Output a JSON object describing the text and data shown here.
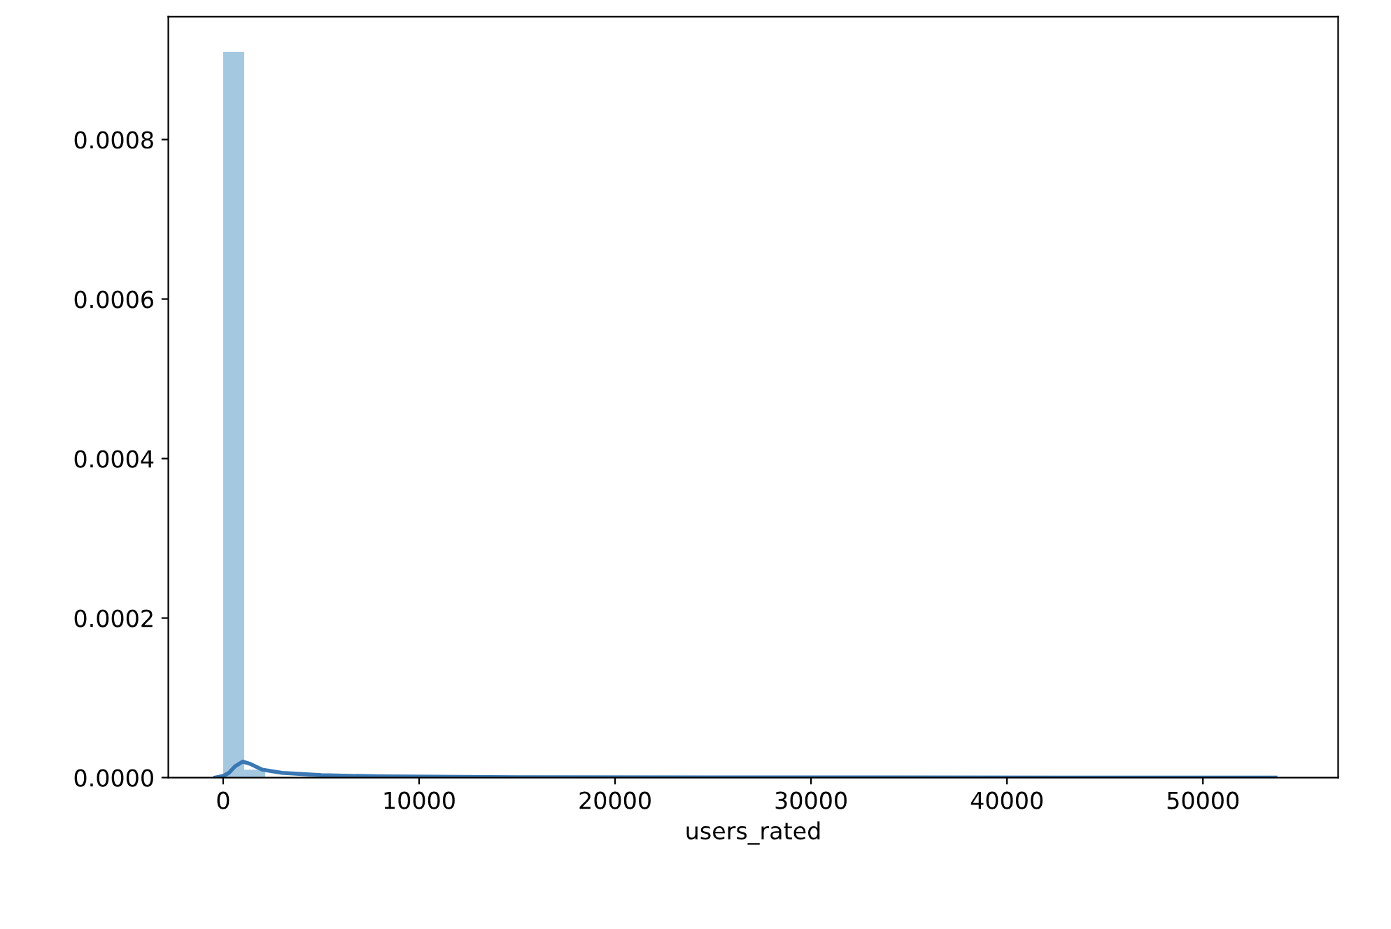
{
  "chart_data": {
    "type": "histogram",
    "xlabel": "users_rated",
    "color": "#a5c8e1",
    "bins": [
      0,
      1074,
      2148,
      3222,
      4296,
      5370,
      6444,
      7518,
      8592,
      9666,
      10740,
      11814,
      12888,
      13962,
      15036,
      16110,
      17184,
      18258,
      19332,
      20406,
      21480,
      22554,
      23628,
      24702,
      25776,
      26850,
      27924,
      28998,
      30072,
      31146,
      32220,
      33294,
      34368,
      35442,
      36516,
      37590,
      38664,
      39738,
      40812,
      41886,
      42960,
      44034,
      45108,
      46182,
      47256,
      48330,
      49404,
      50478,
      51552,
      52626,
      53700
    ],
    "values": [
      0.00091,
      1e-05,
      0,
      0,
      0,
      0,
      0,
      0,
      0,
      0,
      0,
      0,
      0,
      0,
      0,
      0,
      0,
      0,
      0,
      0,
      0,
      0,
      0,
      0,
      0,
      0,
      0,
      0,
      0,
      0,
      0,
      0,
      0,
      0,
      0,
      0,
      0,
      0,
      0,
      0,
      0,
      0,
      0,
      0,
      0,
      0,
      0,
      0,
      0,
      0
    ],
    "series": [
      {
        "type": "line",
        "color": "#3a78b3",
        "x": [
          -400,
          0,
          300,
          600,
          1000,
          1400,
          2000,
          3000,
          5000,
          8000,
          15000,
          30000,
          53700
        ],
        "values": [
          0,
          2e-06,
          6e-06,
          1.4e-05,
          2e-05,
          1.7e-05,
          1e-05,
          6e-06,
          3e-06,
          1.5e-06,
          5e-07,
          2e-07,
          0
        ]
      }
    ],
    "xlim": [
      -2800,
      56900
    ],
    "xticks": [
      0,
      10000,
      20000,
      30000,
      40000,
      50000
    ],
    "ylim": [
      0,
      0.000954
    ],
    "yticks": [
      {
        "value": 0,
        "label": "0.0000"
      },
      {
        "value": 0.0002,
        "label": "0.0002"
      },
      {
        "value": 0.0004,
        "label": "0.0004"
      },
      {
        "value": 0.0006,
        "label": "0.0006"
      },
      {
        "value": 0.0008,
        "label": "0.0008"
      }
    ],
    "grid": false
  }
}
